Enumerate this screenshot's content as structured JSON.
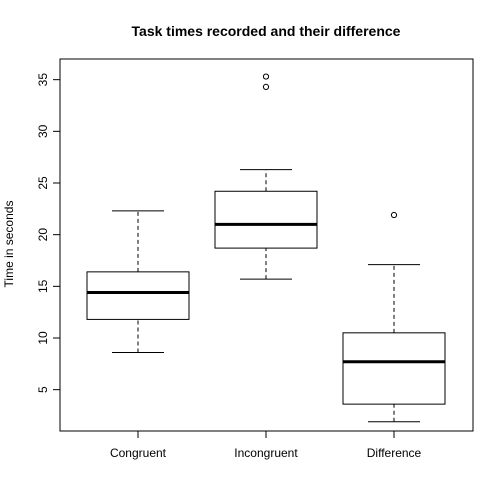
{
  "chart_data": {
    "type": "boxplot",
    "title": "Task times recorded and their difference",
    "xlabel": "",
    "ylabel": "Time in seconds",
    "ylim": [
      1,
      37
    ],
    "yticks": [
      5,
      10,
      15,
      20,
      25,
      30,
      35
    ],
    "categories": [
      "Congruent",
      "Incongruent",
      "Difference"
    ],
    "boxes": [
      {
        "category": "Congruent",
        "whisker_low": 8.6,
        "q1": 11.8,
        "median": 14.4,
        "q3": 16.4,
        "whisker_high": 22.3,
        "outliers": []
      },
      {
        "category": "Incongruent",
        "whisker_low": 15.7,
        "q1": 18.7,
        "median": 21.0,
        "q3": 24.2,
        "whisker_high": 26.3,
        "outliers": [
          34.3,
          35.3
        ]
      },
      {
        "category": "Difference",
        "whisker_low": 1.9,
        "q1": 3.6,
        "median": 7.7,
        "q3": 10.5,
        "whisker_high": 17.1,
        "outliers": [
          21.9
        ]
      }
    ],
    "grid": false,
    "legend": "none"
  }
}
